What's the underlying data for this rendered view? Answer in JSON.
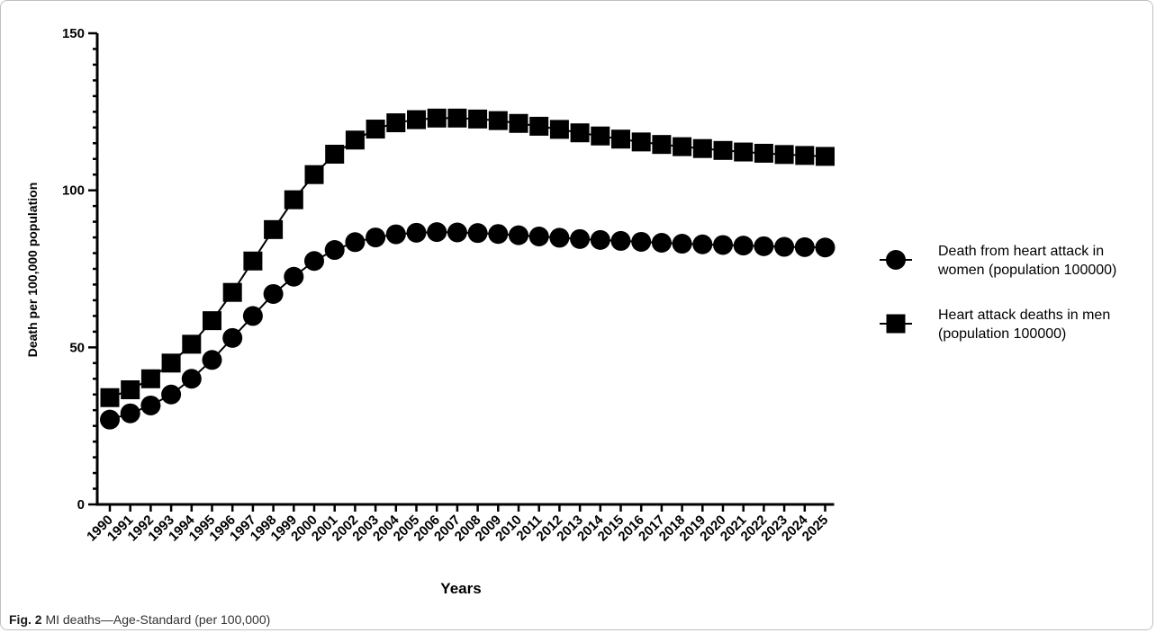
{
  "caption": {
    "label": "Fig. 2",
    "text": "MI deaths—Age-Standard (per 100,000)"
  },
  "chart_data": {
    "type": "line",
    "xlabel": "Years",
    "ylabel": "Death per 100,000 population",
    "ylim": [
      0,
      150
    ],
    "yticks": [
      0,
      50,
      100,
      150
    ],
    "grid": false,
    "legend_position": "right",
    "categories": [
      "1990",
      "1991",
      "1992",
      "1993",
      "1994",
      "1995",
      "1996",
      "1997",
      "1998",
      "1999",
      "2000",
      "2001",
      "2002",
      "2003",
      "2004",
      "2005",
      "2006",
      "2007",
      "2008",
      "2009",
      "2010",
      "2011",
      "2012",
      "2013",
      "2014",
      "2015",
      "2016",
      "2017",
      "2018",
      "2019",
      "2020",
      "2021",
      "2022",
      "2023",
      "2024",
      "2025"
    ],
    "series": [
      {
        "name": "Death from heart attack in women (population 100000)",
        "legend_lines": [
          "Death from heart attack in",
          "women (population 100000)"
        ],
        "marker": "circle",
        "values": [
          27,
          29,
          31.5,
          35,
          40,
          46,
          53,
          60,
          67,
          72.5,
          77.5,
          81,
          83.5,
          85,
          86,
          86.5,
          86.7,
          86.6,
          86.4,
          86.1,
          85.7,
          85.3,
          84.9,
          84.5,
          84.2,
          83.9,
          83.6,
          83.3,
          83.0,
          82.8,
          82.6,
          82.4,
          82.2,
          82.0,
          81.9,
          81.8
        ]
      },
      {
        "name": "Heart attack deaths in men (population 100000)",
        "legend_lines": [
          "Heart attack deaths in men",
          "(population 100000)"
        ],
        "marker": "square",
        "values": [
          34,
          36.5,
          40,
          45,
          51,
          58.5,
          67.5,
          77.5,
          87.5,
          97,
          105,
          111.5,
          116,
          119.5,
          121.5,
          122.5,
          123,
          123,
          122.7,
          122.2,
          121.3,
          120.4,
          119.4,
          118.3,
          117.3,
          116.3,
          115.4,
          114.6,
          113.9,
          113.3,
          112.7,
          112.2,
          111.8,
          111.4,
          111.1,
          110.8
        ]
      }
    ]
  }
}
